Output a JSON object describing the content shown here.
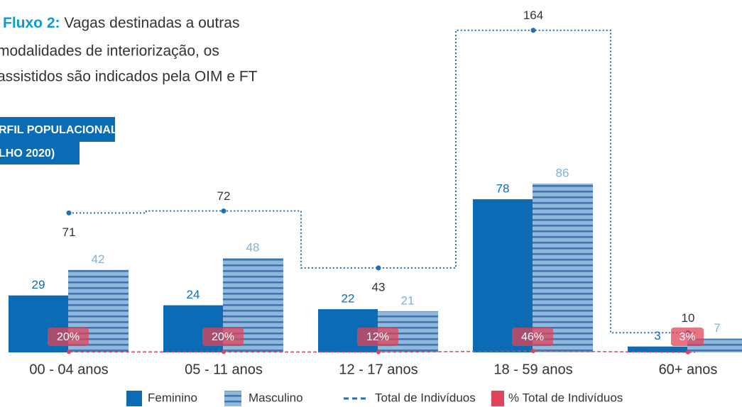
{
  "chart_data": {
    "type": "bar",
    "intro_lead": "Fluxo 2:",
    "intro_lines": [
      "Vagas destinadas a outras",
      "modalidades de interiorização, os",
      "assistidos são indicados pela OIM e FT"
    ],
    "badge_lines": [
      "RFIL POPULACIONAL",
      "LHO 2020)"
    ],
    "categories": [
      "00 - 04 anos",
      "05 - 11 anos",
      "12 - 17 anos",
      "18 - 59 anos",
      "60+ anos"
    ],
    "series": [
      {
        "name": "Feminino",
        "color": "#0b6cb5",
        "values": [
          29,
          24,
          22,
          78,
          3
        ]
      },
      {
        "name": "Masculino",
        "color": "#8fb8de",
        "stripe_color": "#3f74ad",
        "values": [
          42,
          48,
          21,
          86,
          7
        ]
      },
      {
        "name": "Total de Indivíduos",
        "type": "line",
        "color": "#1f6fb5",
        "values": [
          71,
          72,
          43,
          164,
          10
        ]
      },
      {
        "name": "% Total de Indivíduos",
        "type": "line",
        "color": "#e0445a",
        "values": [
          20,
          20,
          12,
          46,
          3
        ],
        "value_labels": [
          "20%",
          "20%",
          "12%",
          "46%",
          "3%"
        ]
      }
    ]
  }
}
